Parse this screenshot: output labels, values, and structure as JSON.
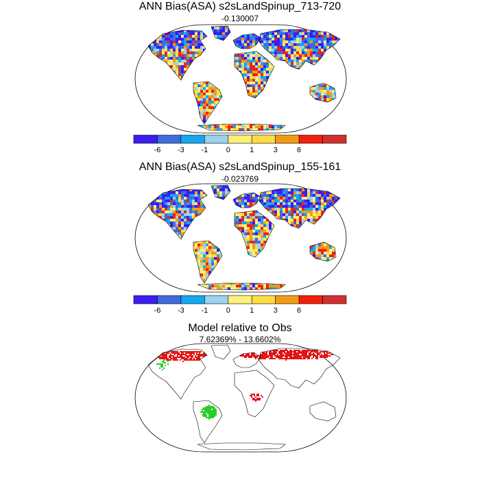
{
  "panels": [
    {
      "title": "ANN Bias(ASA) s2sLandSpinup_713-720",
      "subtitle": "-0.130007"
    },
    {
      "title": "ANN Bias(ASA) s2sLandSpinup_155-161",
      "subtitle": "-0.023769"
    },
    {
      "title": "Model relative to Obs",
      "subtitle": "7.62369% - 13.6602%"
    }
  ],
  "colorbar": {
    "tick_labels": [
      "-6",
      "-3",
      "-1",
      "0",
      "1",
      "3",
      "6"
    ],
    "colors": [
      "#3a1ef2",
      "#3f6ae0",
      "#17a7f0",
      "#9bd2ee",
      "#fdf07a",
      "#fddc45",
      "#f39a15",
      "#f4200e",
      "#d23030"
    ]
  },
  "relative_map_colors": {
    "model_higher": "#e51515",
    "model_lower": "#29cc29"
  }
}
